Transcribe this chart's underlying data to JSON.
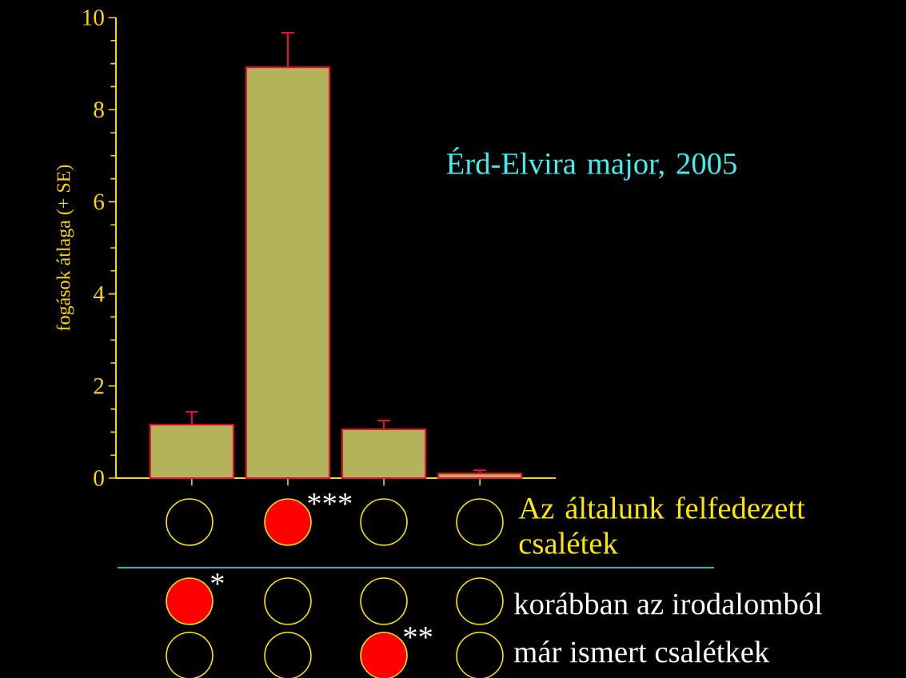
{
  "chart_data": {
    "type": "bar",
    "ylabel": "fogások átlaga (+ SE)",
    "categories": [
      null,
      null,
      null,
      null
    ],
    "values": [
      1.16,
      8.92,
      1.06,
      0.1
    ],
    "errors": [
      0.28,
      0.75,
      0.19,
      0.07
    ],
    "color": "#b3b35c",
    "ylim": [
      0,
      10
    ],
    "yticks": [
      0,
      2,
      4,
      6,
      8,
      10
    ],
    "tick_labels": "y",
    "annotations": [
      "Érd-Elvira major, 2005",
      "***",
      "Az általunk felfedezett csalétek",
      "*",
      "korábban az irodalomból",
      "**",
      "már ismert csalétkek"
    ]
  }
}
